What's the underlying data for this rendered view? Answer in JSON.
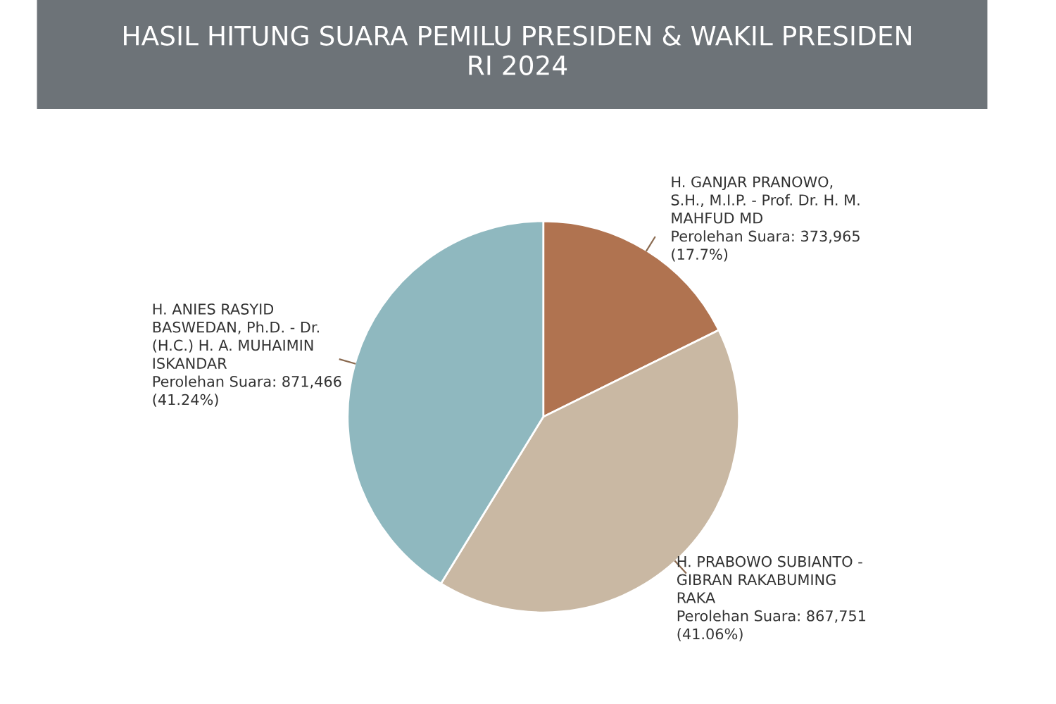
{
  "chart_data": {
    "type": "pie",
    "title": "HASIL HITUNG SUARA PEMILU PRESIDEN & WAKIL PRESIDEN\nRI 2024",
    "categories": [
      "H. GANJAR PRANOWO,\nS.H., M.I.P. - Prof. Dr. H. M.\nMAHFUD MD",
      "H. PRABOWO SUBIANTO -\nGIBRAN RAKABUMING\nRAKA",
      "H. ANIES RASYID\nBASWEDAN, Ph.D. - Dr.\n(H.C.) H. A. MUHAIMIN\nISKANDAR"
    ],
    "values": [
      373965,
      867751,
      871466
    ],
    "value_labels": [
      "Perolehan Suara: 373,965\n(17.7%)",
      "Perolehan Suara: 867,751\n(41.06%)",
      "Perolehan Suara: 871,466\n(41.24%)"
    ],
    "colors": [
      "#b07350",
      "#c9b8a3",
      "#8fb8bf"
    ]
  }
}
